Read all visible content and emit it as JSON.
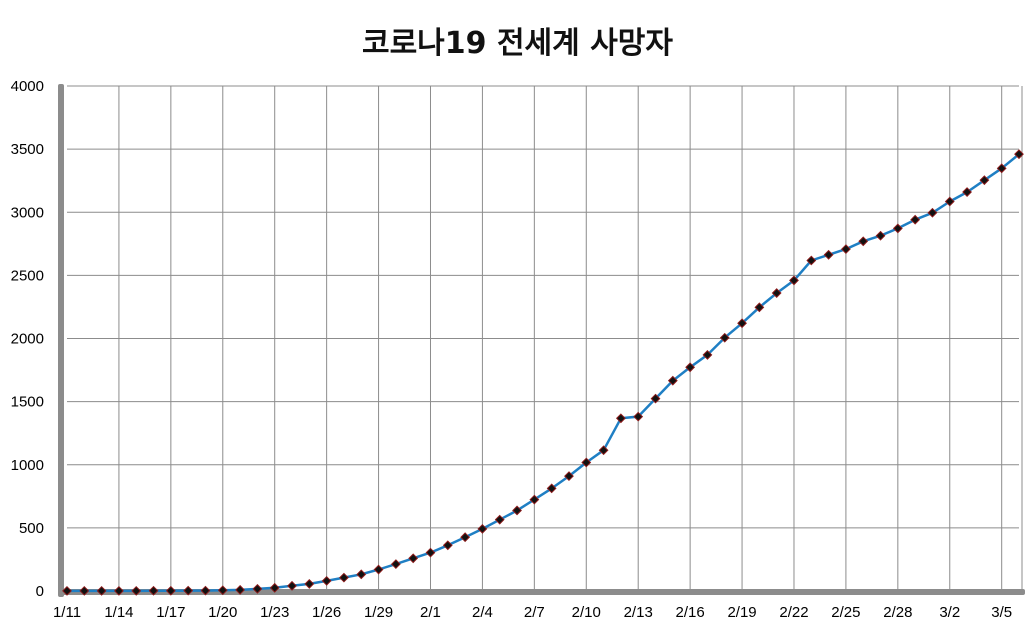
{
  "chart_data": {
    "type": "line",
    "title": "코로나19 전세계 사망자",
    "xlabel": "",
    "ylabel": "",
    "ylim": [
      0,
      4000
    ],
    "yticks": [
      0,
      500,
      1000,
      1500,
      2000,
      2500,
      3000,
      3500,
      4000
    ],
    "grid": true,
    "legend": "none",
    "x_tick_labels": [
      "1/11",
      "1/14",
      "1/17",
      "1/20",
      "1/23",
      "1/26",
      "1/29",
      "2/1",
      "2/4",
      "2/7",
      "2/10",
      "2/13",
      "2/16",
      "2/19",
      "2/22",
      "2/25",
      "2/28",
      "3/2",
      "3/5"
    ],
    "x": [
      "1/11",
      "1/12",
      "1/13",
      "1/14",
      "1/15",
      "1/16",
      "1/17",
      "1/18",
      "1/19",
      "1/20",
      "1/21",
      "1/22",
      "1/23",
      "1/24",
      "1/25",
      "1/26",
      "1/27",
      "1/28",
      "1/29",
      "1/30",
      "1/31",
      "2/1",
      "2/2",
      "2/3",
      "2/4",
      "2/5",
      "2/6",
      "2/7",
      "2/8",
      "2/9",
      "2/10",
      "2/11",
      "2/12",
      "2/13",
      "2/14",
      "2/15",
      "2/16",
      "2/17",
      "2/18",
      "2/19",
      "2/20",
      "2/21",
      "2/22",
      "2/23",
      "2/24",
      "2/25",
      "2/26",
      "2/27",
      "2/28",
      "2/29",
      "3/1",
      "3/2",
      "3/3",
      "3/4",
      "3/5",
      "3/6"
    ],
    "series": [
      {
        "values": [
          1,
          1,
          1,
          1,
          1,
          2,
          2,
          3,
          3,
          6,
          9,
          17,
          25,
          41,
          56,
          80,
          106,
          132,
          170,
          213,
          259,
          304,
          362,
          426,
          492,
          565,
          638,
          724,
          813,
          910,
          1018,
          1115,
          1368,
          1381,
          1524,
          1666,
          1772,
          1870,
          2006,
          2121,
          2247,
          2360,
          2460,
          2618,
          2663,
          2708,
          2770,
          2814,
          2872,
          2941,
          2996,
          3085,
          3160,
          3254,
          3348,
          3460
        ]
      }
    ],
    "colors": {
      "line": "#1f7fc4",
      "marker_fill": "#111111",
      "marker_edge": "#8b1a1a",
      "grid": "#8c8c8c",
      "axis_wall": "#8c8c8c"
    }
  }
}
